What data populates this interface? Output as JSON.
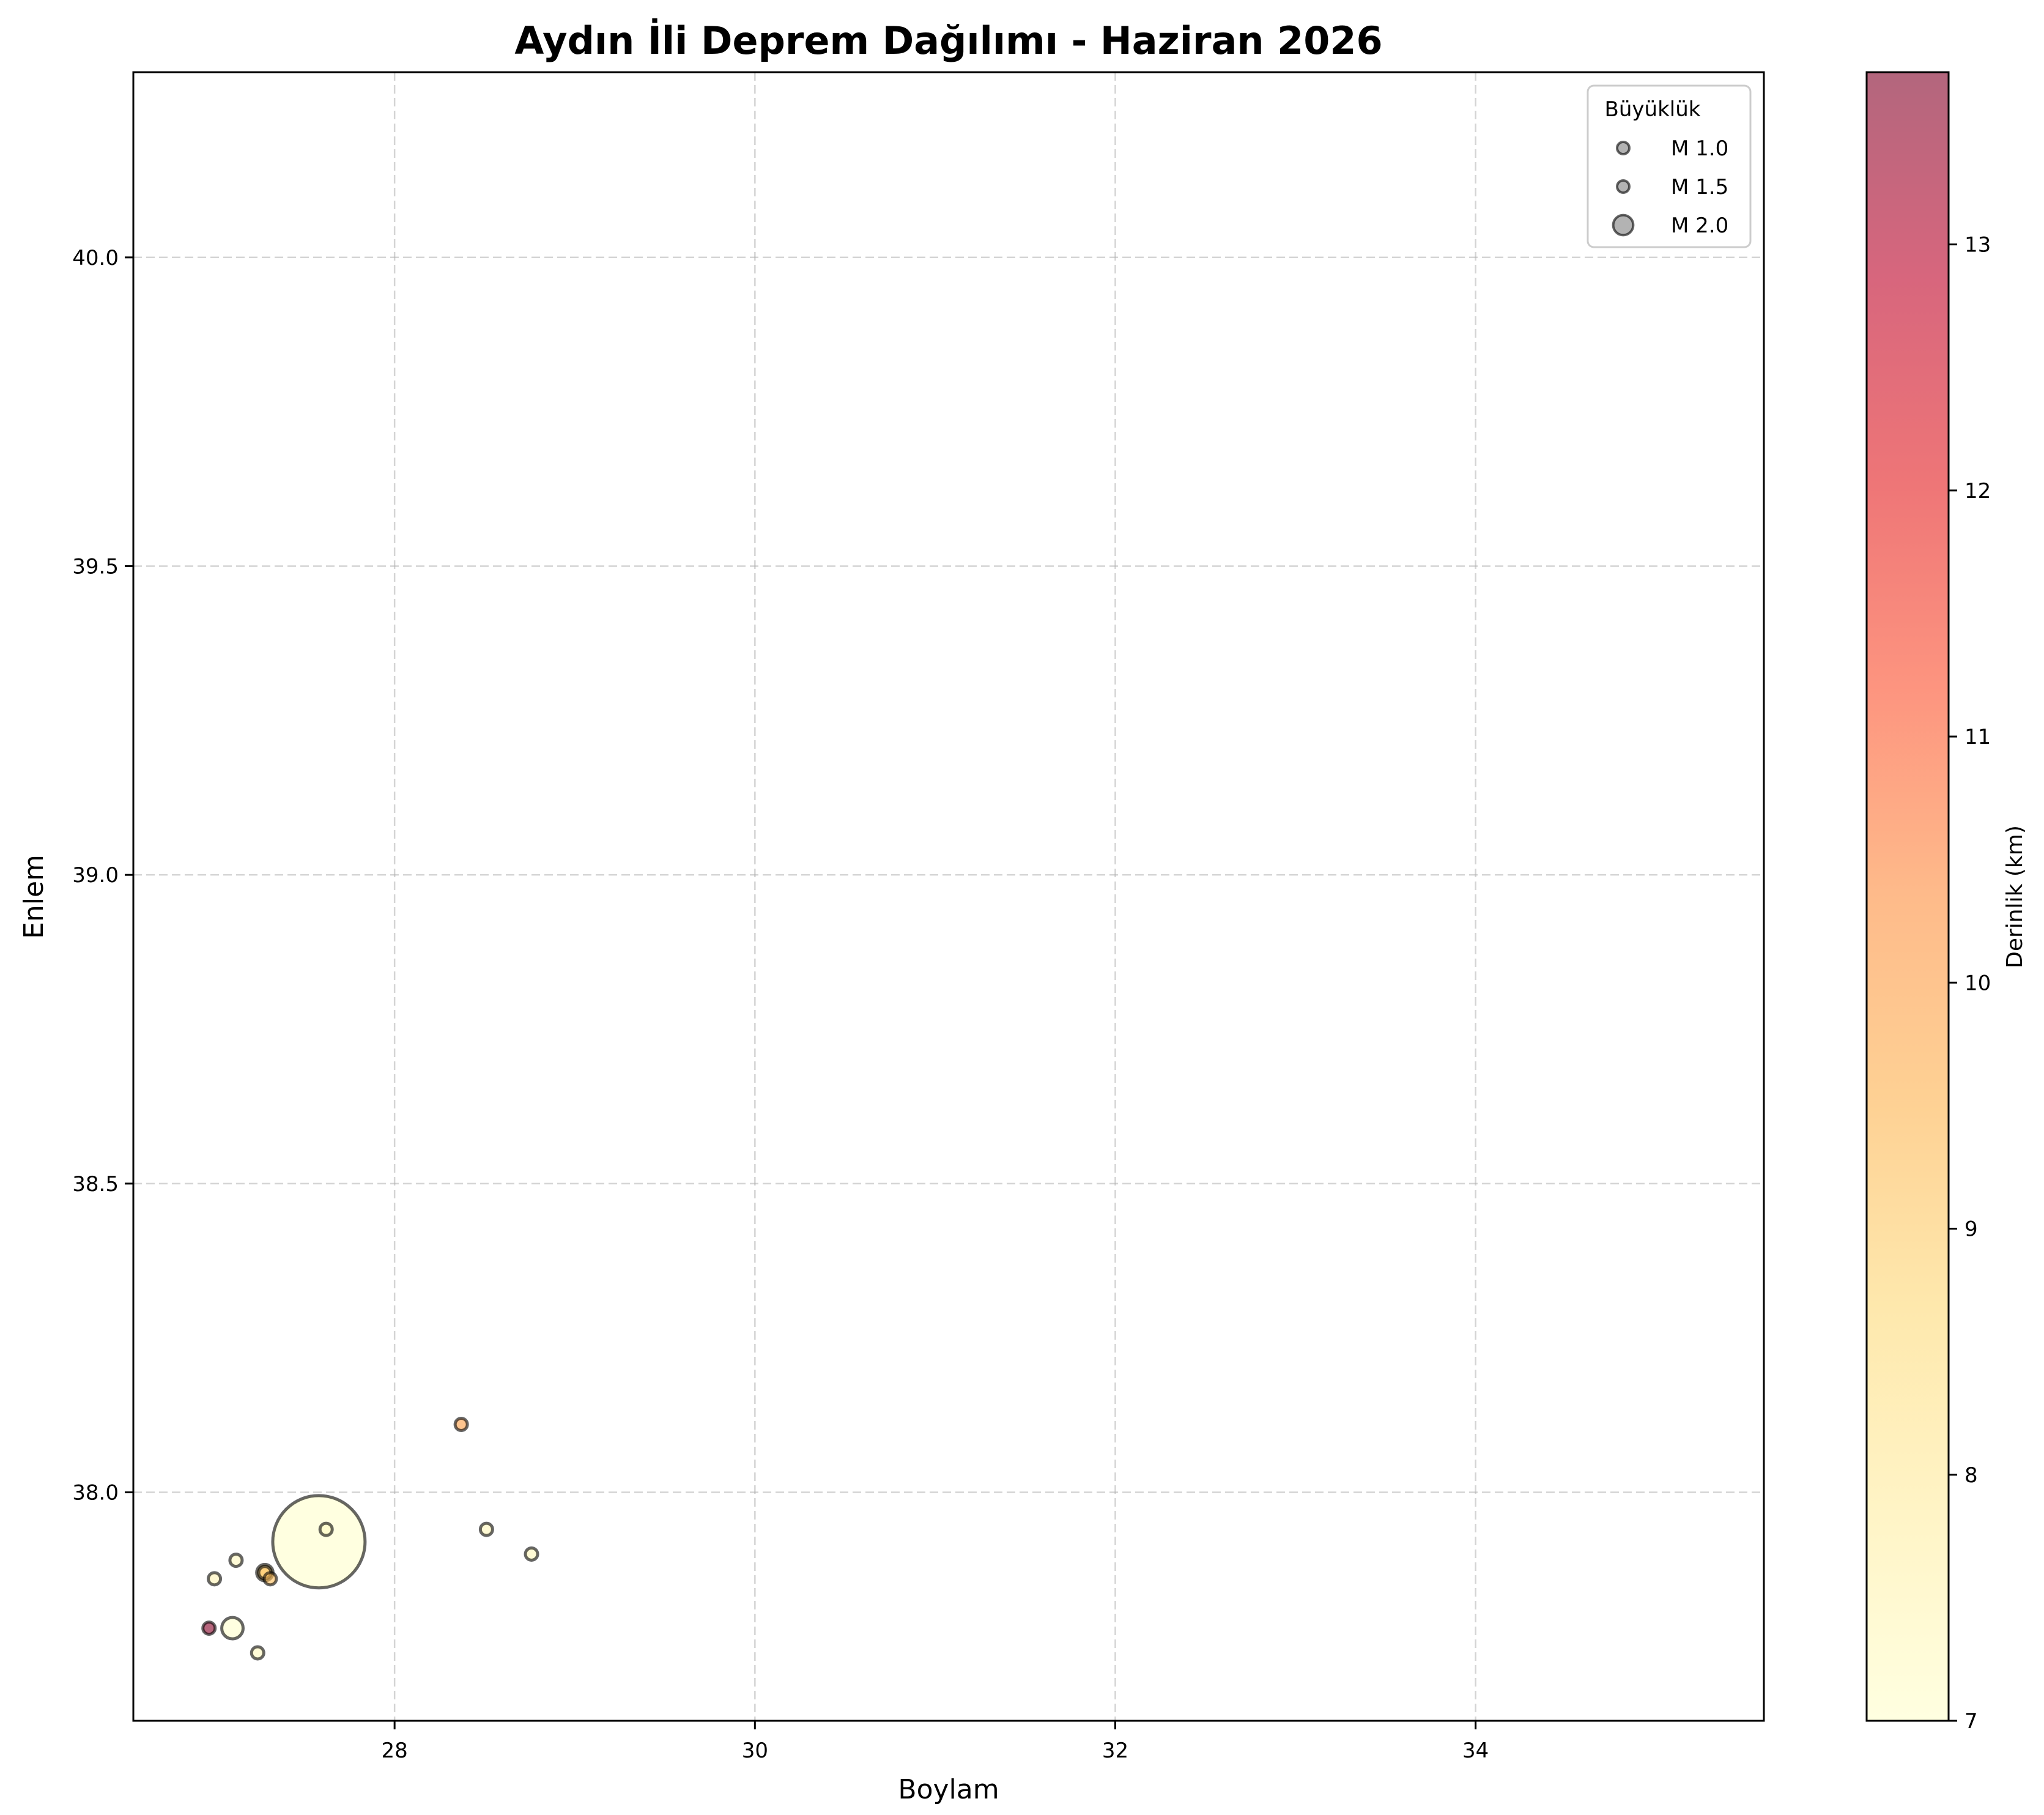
{
  "chart_data": {
    "type": "scatter",
    "title": "Aydın İli Deprem Dağılımı - Haziran 2026",
    "xlabel": "Boylam",
    "ylabel": "Enlem",
    "xlim": [
      26.55,
      35.6
    ],
    "ylim": [
      37.63,
      40.3
    ],
    "xticks": [
      28,
      30,
      32,
      34
    ],
    "xtick_labels": [
      "28",
      "30",
      "32",
      "34"
    ],
    "yticks": [
      38.0,
      38.5,
      39.0,
      39.5,
      40.0
    ],
    "ytick_labels": [
      "38.0",
      "38.5",
      "39.0",
      "39.5",
      "40.0"
    ],
    "grid": true,
    "size_encoding": "magnitude",
    "color_encoding": "depth_km",
    "points": [
      {
        "x": 27.58,
        "y": 37.92,
        "magnitude": 3.6,
        "depth_km": 7.0
      },
      {
        "x": 27.1,
        "y": 37.78,
        "magnitude": 2.05,
        "depth_km": 7.0
      },
      {
        "x": 27.28,
        "y": 37.87,
        "magnitude": 1.85,
        "depth_km": 8.6
      },
      {
        "x": 27.28,
        "y": 37.87,
        "magnitude": 1.35,
        "depth_km": 9.2
      },
      {
        "x": 27.62,
        "y": 37.94,
        "magnitude": 1.35,
        "depth_km": 7.2
      },
      {
        "x": 26.97,
        "y": 37.78,
        "magnitude": 1.35,
        "depth_km": 13.6
      },
      {
        "x": 27.12,
        "y": 37.89,
        "magnitude": 1.2,
        "depth_km": 7.3
      },
      {
        "x": 27.0,
        "y": 37.86,
        "magnitude": 1.2,
        "depth_km": 7.5
      },
      {
        "x": 28.51,
        "y": 37.94,
        "magnitude": 1.1,
        "depth_km": 7.4
      },
      {
        "x": 27.31,
        "y": 37.86,
        "magnitude": 0.9,
        "depth_km": 9.3
      },
      {
        "x": 27.24,
        "y": 37.74,
        "magnitude": 0.85,
        "depth_km": 7.3
      },
      {
        "x": 28.76,
        "y": 37.9,
        "magnitude": 0.8,
        "depth_km": 7.4
      },
      {
        "x": 28.37,
        "y": 38.11,
        "magnitude": 0.8,
        "depth_km": 10.0
      }
    ],
    "legend": {
      "title": "Büyüklük",
      "position": "top-right",
      "entries": [
        {
          "label": "M 1.0",
          "magnitude": 1.0
        },
        {
          "label": "M 1.5",
          "magnitude": 1.5
        },
        {
          "label": "M 2.0",
          "magnitude": 2.0
        }
      ]
    },
    "colorbar": {
      "label": "Derinlik (km)",
      "range": [
        7.0,
        13.7
      ],
      "ticks": [
        7,
        8,
        9,
        10,
        11,
        12,
        13
      ],
      "tick_labels": [
        "7",
        "8",
        "9",
        "10",
        "11",
        "12",
        "13"
      ],
      "colormap": "YlOrRd"
    }
  }
}
